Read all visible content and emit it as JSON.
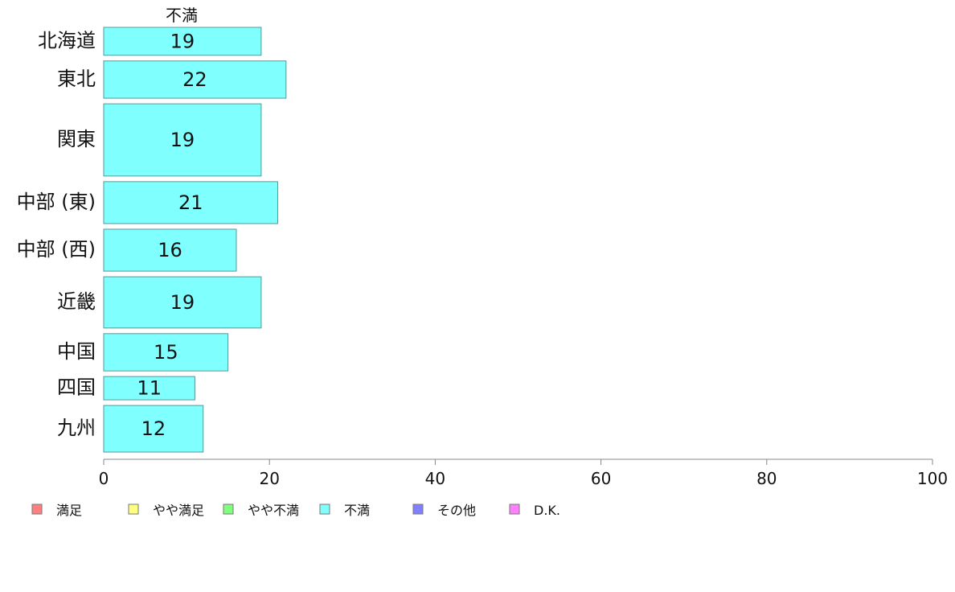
{
  "chart_data": {
    "type": "bar",
    "orientation": "horizontal",
    "column_title": "不満",
    "categories": [
      "北海道",
      "東北",
      "関東",
      "中部 (東)",
      "中部 (西)",
      "近畿",
      "中国",
      "四国",
      "九州"
    ],
    "series": [
      {
        "name": "不満",
        "values": [
          19,
          22,
          19,
          21,
          16,
          19,
          15,
          11,
          12
        ]
      }
    ],
    "bar_thickness_share": [
      0.06,
      0.08,
      0.155,
      0.09,
      0.09,
      0.11,
      0.08,
      0.05,
      0.1
    ],
    "xlim": [
      0,
      100
    ],
    "xticks": [
      0,
      20,
      40,
      60,
      80,
      100
    ],
    "bar_color": "#80ffff",
    "bar_edge_color": "#559999",
    "legend": [
      {
        "label": "満足",
        "color": "#ff8080"
      },
      {
        "label": "やや満足",
        "color": "#ffff80"
      },
      {
        "label": "やや不満",
        "color": "#80ff80"
      },
      {
        "label": "不満",
        "color": "#80ffff"
      },
      {
        "label": "その他",
        "color": "#8080ff"
      },
      {
        "label": "D.K.",
        "color": "#ff80ff"
      }
    ],
    "legend_position": "bottom",
    "grid": false
  }
}
